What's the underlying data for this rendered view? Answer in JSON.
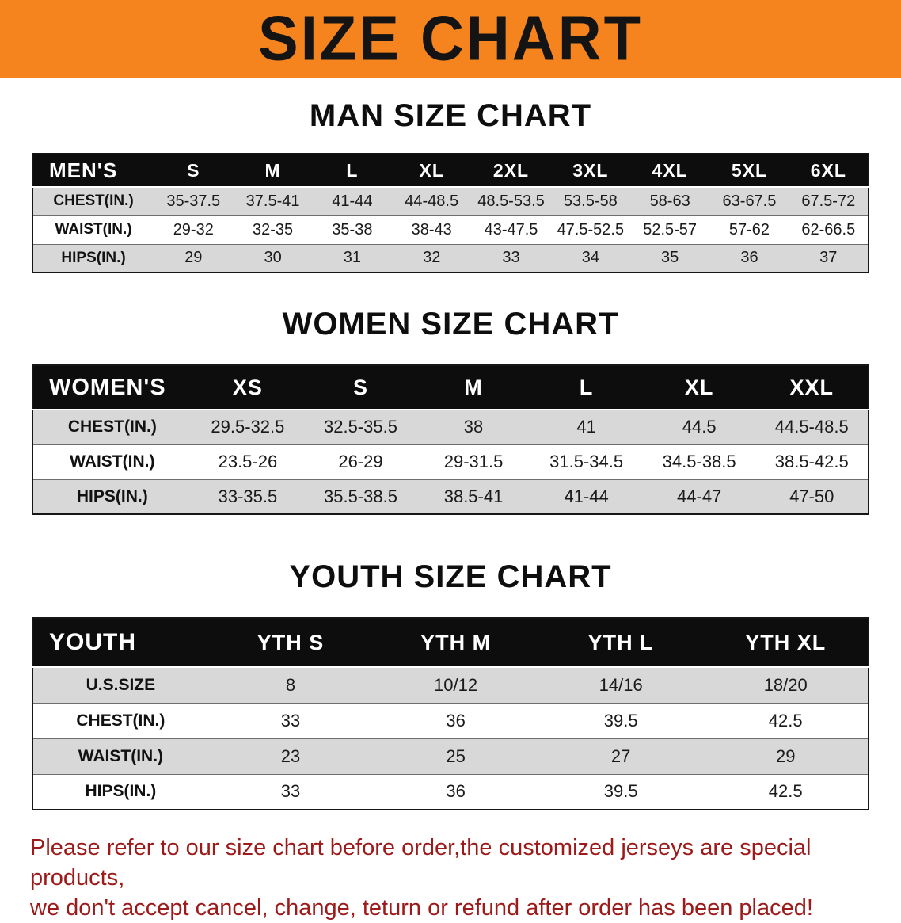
{
  "banner": {
    "title": "SIZE CHART",
    "bg_color": "#F5841E"
  },
  "sections": [
    {
      "heading": "MAN SIZE CHART",
      "table": {
        "header": [
          "MEN'S",
          "S",
          "M",
          "L",
          "XL",
          "2XL",
          "3XL",
          "4XL",
          "5XL",
          "6XL"
        ],
        "rows": [
          {
            "label": "CHEST(IN.)",
            "values": [
              "35-37.5",
              "37.5-41",
              "41-44",
              "44-48.5",
              "48.5-53.5",
              "53.5-58",
              "58-63",
              "63-67.5",
              "67.5-72"
            ]
          },
          {
            "label": "WAIST(IN.)",
            "values": [
              "29-32",
              "32-35",
              "35-38",
              "38-43",
              "43-47.5",
              "47.5-52.5",
              "52.5-57",
              "57-62",
              "62-66.5"
            ]
          },
          {
            "label": "HIPS(IN.)",
            "values": [
              "29",
              "30",
              "31",
              "32",
              "33",
              "34",
              "35",
              "36",
              "37"
            ]
          }
        ]
      }
    },
    {
      "heading": "WOMEN SIZE CHART",
      "table": {
        "header": [
          "WOMEN'S",
          "XS",
          "S",
          "M",
          "L",
          "XL",
          "XXL"
        ],
        "rows": [
          {
            "label": "CHEST(IN.)",
            "values": [
              "29.5-32.5",
              "32.5-35.5",
              "38",
              "41",
              "44.5",
              "44.5-48.5"
            ]
          },
          {
            "label": "WAIST(IN.)",
            "values": [
              "23.5-26",
              "26-29",
              "29-31.5",
              "31.5-34.5",
              "34.5-38.5",
              "38.5-42.5"
            ]
          },
          {
            "label": "HIPS(IN.)",
            "values": [
              "33-35.5",
              "35.5-38.5",
              "38.5-41",
              "41-44",
              "44-47",
              "47-50"
            ]
          }
        ]
      }
    },
    {
      "heading": "YOUTH SIZE CHART",
      "table": {
        "header": [
          "YOUTH",
          "YTH S",
          "YTH M",
          "YTH L",
          "YTH XL"
        ],
        "rows": [
          {
            "label": "U.S.SIZE",
            "values": [
              "8",
              "10/12",
              "14/16",
              "18/20"
            ]
          },
          {
            "label": "CHEST(IN.)",
            "values": [
              "33",
              "36",
              "39.5",
              "42.5"
            ]
          },
          {
            "label": "WAIST(IN.)",
            "values": [
              "23",
              "25",
              "27",
              "29"
            ]
          },
          {
            "label": "HIPS(IN.)",
            "values": [
              "33",
              "36",
              "39.5",
              "42.5"
            ]
          }
        ]
      }
    }
  ],
  "disclaimer": {
    "line1": "Please refer to our size chart before order,the customized jerseys are special products,",
    "line2": "we don't accept cancel, change, teturn or refund after order has been placed!",
    "color": "#9C1A1A"
  }
}
